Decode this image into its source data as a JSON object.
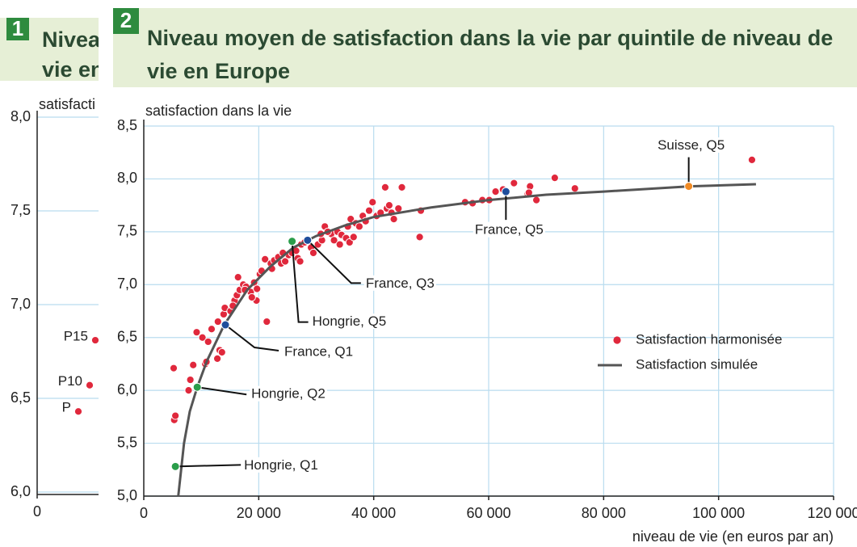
{
  "chart_data": [
    {
      "type": "scatter",
      "badge": "1",
      "title_lines": [
        "Nivea",
        "vie en"
      ],
      "y_label": "satisfacti",
      "xlim": [
        0,
        100000
      ],
      "xticks": [
        0
      ],
      "ylim": [
        6,
        8
      ],
      "yticks": [
        {
          "value": 6,
          "label": "6,0"
        },
        {
          "value": 6.5,
          "label": "6,5"
        },
        {
          "value": 7,
          "label": "7,0"
        },
        {
          "value": 7.5,
          "label": "7,5"
        },
        {
          "value": 8,
          "label": "8,0"
        }
      ],
      "grid": true,
      "series": [
        {
          "kind": "points",
          "color": "#e0283c",
          "labels": [
            "P15",
            "P10",
            "P"
          ],
          "x": [
            8370,
            7560,
            5930
          ],
          "values": [
            6.81,
            6.57,
            6.43
          ]
        }
      ]
    },
    {
      "type": "scatter",
      "badge": "2",
      "title_lines": [
        "Niveau moyen de satisfaction dans la vie par quintile de niveau de",
        "vie en Europe"
      ],
      "y_label": "satisfaction dans la vie",
      "x_label": "niveau de vie (en euros par an)",
      "xlim": [
        0,
        120000
      ],
      "xticks": [
        0,
        {
          "value": 20000,
          "label": "20 000"
        },
        {
          "value": 40000,
          "label": "40 000"
        },
        {
          "value": 60000,
          "label": "60 000"
        },
        {
          "value": 80000,
          "label": "80 000"
        },
        {
          "value": 100000,
          "label": "100 000"
        },
        {
          "value": 120000,
          "label": "120 000"
        }
      ],
      "ylim": [
        5,
        8.5
      ],
      "yticks": [
        {
          "value": 5,
          "label": "5,0"
        },
        {
          "value": 5.5,
          "label": "5,5"
        },
        {
          "value": 6,
          "label": "6,0"
        },
        {
          "value": 6.5,
          "label": "6,5"
        },
        {
          "value": 7,
          "label": "7,0"
        },
        {
          "value": 7.5,
          "label": "7,5"
        },
        {
          "value": 8,
          "label": "8,0"
        },
        {
          "value": 8.5,
          "label": "8,5"
        }
      ],
      "grid": true,
      "series": [
        {
          "name": "Satisfaction harmonisée",
          "kind": "points",
          "color": "#e0283c",
          "x": [
            5300,
            5500,
            5200,
            7800,
            8100,
            8600,
            9200,
            10200,
            11200,
            11800,
            10700,
            10900,
            12800,
            13200,
            13600,
            12900,
            13900,
            14100,
            15100,
            15800,
            15500,
            16200,
            16700,
            17300,
            17800,
            18600,
            19200,
            19700,
            19600,
            20200,
            21400,
            20500,
            21100,
            22100,
            22700,
            22300,
            23400,
            23900,
            24600,
            25200,
            24200,
            25800,
            26800,
            27200,
            27400,
            16400,
            17600,
            18800,
            29100,
            30300,
            31000,
            31500,
            32600,
            33100,
            33700,
            34400,
            35200,
            35500,
            36000,
            36900,
            37500,
            38100,
            38600,
            39200,
            39800,
            40500,
            41200,
            42000,
            42300,
            42700,
            43100,
            43500,
            44300,
            44900,
            48000,
            48200,
            30800,
            32000,
            34100,
            35800,
            36500,
            55900,
            57200,
            58900,
            60100,
            61200,
            62500,
            64400,
            66800,
            67200,
            68300,
            71500,
            75000,
            105800,
            67000,
            29500,
            28000,
            26500
          ],
          "values": [
            5.72,
            5.76,
            6.21,
            6.0,
            6.1,
            6.24,
            6.55,
            6.5,
            6.46,
            6.58,
            6.25,
            6.27,
            6.3,
            6.38,
            6.36,
            6.65,
            6.72,
            6.78,
            6.75,
            6.85,
            6.8,
            6.9,
            6.95,
            7.0,
            6.98,
            6.93,
            7.02,
            6.96,
            6.85,
            7.1,
            6.65,
            7.13,
            7.24,
            7.2,
            7.23,
            7.15,
            7.26,
            7.2,
            7.22,
            7.28,
            7.3,
            7.3,
            7.25,
            7.22,
            7.38,
            7.07,
            6.95,
            6.88,
            7.35,
            7.38,
            7.42,
            7.55,
            7.48,
            7.42,
            7.5,
            7.47,
            7.44,
            7.55,
            7.62,
            7.58,
            7.55,
            7.65,
            7.6,
            7.7,
            7.78,
            7.65,
            7.68,
            7.92,
            7.72,
            7.75,
            7.68,
            7.62,
            7.72,
            7.92,
            7.45,
            7.7,
            7.48,
            7.5,
            7.38,
            7.4,
            7.45,
            7.78,
            7.77,
            7.8,
            7.8,
            7.88,
            7.9,
            7.96,
            7.86,
            7.93,
            7.8,
            8.01,
            7.91,
            8.18,
            7.87,
            7.3,
            7.4,
            7.32
          ]
        },
        {
          "name": "Satisfaction simulée",
          "kind": "line",
          "color": "#555555",
          "x": [
            6000,
            7000,
            8000,
            9300,
            11000,
            14000,
            18000,
            22000,
            26000,
            30000,
            35000,
            40000,
            50000,
            60000,
            70000,
            80000,
            95000,
            106500
          ],
          "values": [
            5.0,
            5.5,
            5.8,
            6.03,
            6.28,
            6.62,
            6.95,
            7.17,
            7.35,
            7.46,
            7.56,
            7.64,
            7.73,
            7.8,
            7.85,
            7.88,
            7.93,
            7.95
          ]
        }
      ],
      "annotations": [
        {
          "text": "Hongrie, Q1",
          "x": 5500,
          "y": 5.28,
          "color": "#2a9d4a"
        },
        {
          "text": "Hongrie, Q2",
          "x": 9300,
          "y": 6.03,
          "color": "#2a9d4a"
        },
        {
          "text": "France, Q1",
          "x": 14200,
          "y": 6.62,
          "color": "#1f4e9c"
        },
        {
          "text": "Hongrie, Q5",
          "x": 25800,
          "y": 7.41,
          "color": "#2a9d4a"
        },
        {
          "text": "France, Q3",
          "x": 28500,
          "y": 7.42,
          "color": "#1f4e9c"
        },
        {
          "text": "France, Q5",
          "x": 63000,
          "y": 7.88,
          "color": "#1f4e9c"
        },
        {
          "text": "Suisse, Q5",
          "x": 94800,
          "y": 7.93,
          "color": "#f08a24"
        }
      ]
    }
  ]
}
